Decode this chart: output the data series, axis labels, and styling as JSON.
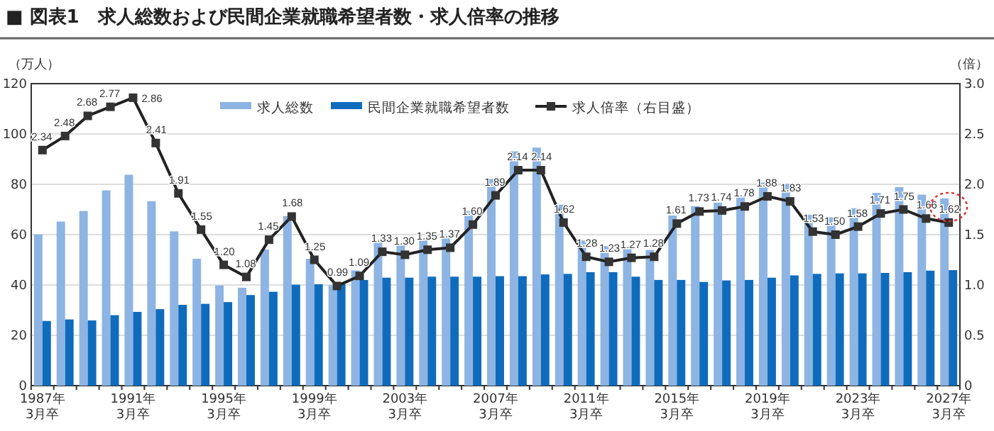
{
  "chart_data": {
    "type": "bar",
    "title": "■ 図表1　求人総数および民間企業就職希望者数・求人倍率の推移",
    "ylabel": "（万人）",
    "y2label": "（倍）",
    "categories": [
      "1987年\n3月卒",
      null,
      null,
      null,
      "1991年\n3月卒",
      null,
      null,
      null,
      "1995年\n3月卒",
      null,
      null,
      null,
      "1999年\n3月卒",
      null,
      null,
      null,
      "2003年\n3月卒",
      null,
      null,
      null,
      "2007年\n3月卒",
      null,
      null,
      null,
      "2011年\n3月卒",
      null,
      null,
      null,
      "2015年\n3月卒",
      null,
      null,
      null,
      "2019年\n3月卒",
      null,
      null,
      null,
      "2023年\n3月卒",
      null,
      null,
      null,
      "2027年\n3月卒"
    ],
    "series": [
      {
        "name": "求人総数",
        "color": "#8db4e3",
        "values": [
          60.1,
          65.2,
          69.4,
          77.6,
          83.8,
          73.3,
          61.3,
          50.4,
          39.8,
          38.9,
          54.1,
          67.4,
          50.4,
          39.9,
          45.8,
          57.1,
          55.8,
          58.5,
          59.3,
          69.3,
          82.2,
          93.1,
          94.6,
          71.9,
          57.7,
          55.5,
          55.0,
          53.9,
          67.6,
          71.3,
          72.7,
          74.8,
          80.7,
          80.2,
          67.9,
          66.9,
          70.5,
          76.6,
          78.9,
          75.9,
          74.4
        ]
      },
      {
        "name": "民間企業就職希望者数",
        "color": "#0f6cbd",
        "values": [
          25.7,
          26.3,
          25.9,
          28.0,
          29.3,
          30.4,
          32.1,
          32.5,
          33.2,
          36.0,
          37.3,
          40.1,
          40.3,
          40.3,
          42.0,
          42.9,
          42.9,
          43.3,
          43.3,
          43.3,
          43.5,
          43.5,
          44.2,
          44.4,
          45.1,
          45.1,
          43.3,
          42.0,
          42.0,
          41.2,
          41.8,
          42.0,
          42.9,
          43.8,
          44.4,
          44.6,
          44.6,
          44.8,
          45.1,
          45.7,
          45.9
        ]
      },
      {
        "name": "求人倍率（右目盛）",
        "type": "line",
        "axis": "y2",
        "color": "#222222",
        "marker": "square",
        "values": [
          2.34,
          2.48,
          2.68,
          2.77,
          2.86,
          2.41,
          1.91,
          1.55,
          1.2,
          1.08,
          1.45,
          1.68,
          1.25,
          0.99,
          1.09,
          1.33,
          1.3,
          1.35,
          1.37,
          1.6,
          1.89,
          2.14,
          2.14,
          1.62,
          1.28,
          1.23,
          1.27,
          1.28,
          1.61,
          1.73,
          1.74,
          1.78,
          1.88,
          1.83,
          1.53,
          1.5,
          1.58,
          1.71,
          1.75,
          1.66,
          1.62
        ],
        "value_labels": [
          "2.34",
          "2.48",
          "2.68",
          "2.77",
          "2.86",
          "2.41",
          "1.91",
          "1.55",
          "1.20",
          "1.08",
          "1.45",
          "1.68",
          "1.25",
          "0.99",
          "1.09",
          "1.33",
          "1.30",
          "1.35",
          "1.37",
          "1.60",
          "1.89",
          "2.14",
          "2.14",
          "1.62",
          "1.28",
          "1.23",
          "1.27",
          "1.28",
          "1.61",
          "1.73",
          "1.74",
          "1.78",
          "1.88",
          "1.83",
          "1.53",
          "1.50",
          "1.58",
          "1.71",
          "1.75",
          "1.66",
          "1.62"
        ]
      }
    ],
    "ylim": [
      0,
      120
    ],
    "yticks": [
      0,
      20,
      40,
      60,
      80,
      100,
      120
    ],
    "y2lim": [
      0,
      3
    ],
    "y2ticks": [
      0,
      {
        "value": 0.5,
        "label": "0.5"
      },
      {
        "value": 1,
        "label": "1.0"
      },
      {
        "value": 1.5,
        "label": "1.5"
      },
      {
        "value": 2,
        "label": "2.0"
      },
      {
        "value": 2.5,
        "label": "2.5"
      },
      {
        "value": 3,
        "label": "3.0"
      }
    ],
    "grid": "y",
    "legend": "top right"
  }
}
